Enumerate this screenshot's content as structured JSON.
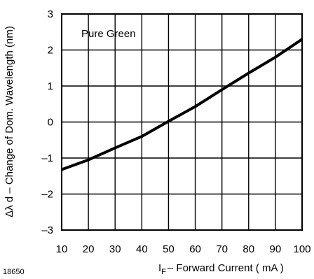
{
  "chart_data": {
    "type": "line",
    "annotation": "Pure Green",
    "figure_id": "18650",
    "xlabel_sub": "F",
    "xlabel_text": "– Forward Current ( mA )",
    "ylabel": "Δλ d – Change of Dom. Wavelength (nm)",
    "xlim": [
      10,
      100
    ],
    "ylim": [
      -3,
      3
    ],
    "xticks": [
      10,
      20,
      30,
      40,
      50,
      60,
      70,
      80,
      90,
      100
    ],
    "yticks": [
      -3,
      -2,
      -1,
      0,
      1,
      2,
      3
    ],
    "ytick_labels": [
      "–3",
      "–2",
      "–1",
      "0",
      "1",
      "2",
      "3"
    ],
    "grid": true,
    "series": [
      {
        "x": [
          10,
          20,
          30,
          40,
          50,
          60,
          70,
          80,
          90,
          100
        ],
        "y": [
          -1.32,
          -1.05,
          -0.72,
          -0.4,
          0.02,
          0.43,
          0.9,
          1.36,
          1.8,
          2.3
        ]
      }
    ]
  }
}
